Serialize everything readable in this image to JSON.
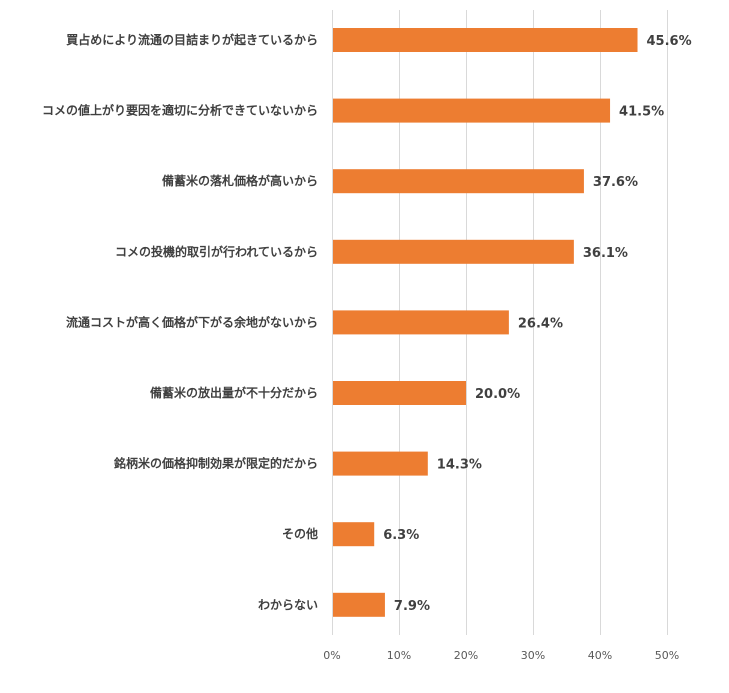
{
  "chart_data": {
    "type": "bar",
    "orientation": "horizontal",
    "title": "",
    "xlabel": "",
    "ylabel": "",
    "categories": [
      "買占めにより流通の目詰まりが起きているから",
      "コメの値上がり要因を適切に分析できていないから",
      "備蓄米の落札価格が高いから",
      "コメの投機的取引が行われているから",
      "流通コストが高く価格が下がる余地がないから",
      "備蓄米の放出量が不十分だから",
      "銘柄米の価格抑制効果が限定的だから",
      "その他",
      "わからない"
    ],
    "values": [
      45.6,
      41.5,
      37.6,
      36.1,
      26.4,
      20.0,
      14.3,
      6.3,
      7.9
    ],
    "data_labels": [
      "45.6%",
      "41.5%",
      "37.6%",
      "36.1%",
      "26.4%",
      "20.0%",
      "14.3%",
      "6.3%",
      "7.9%"
    ],
    "xlim": [
      0,
      50
    ],
    "x_ticks": [
      0,
      10,
      20,
      30,
      40,
      50
    ],
    "x_tick_labels": [
      "0%",
      "10%",
      "20%",
      "30%",
      "40%",
      "50%"
    ],
    "grid": true,
    "legend": "none",
    "bar_color": "#ed7d31"
  }
}
